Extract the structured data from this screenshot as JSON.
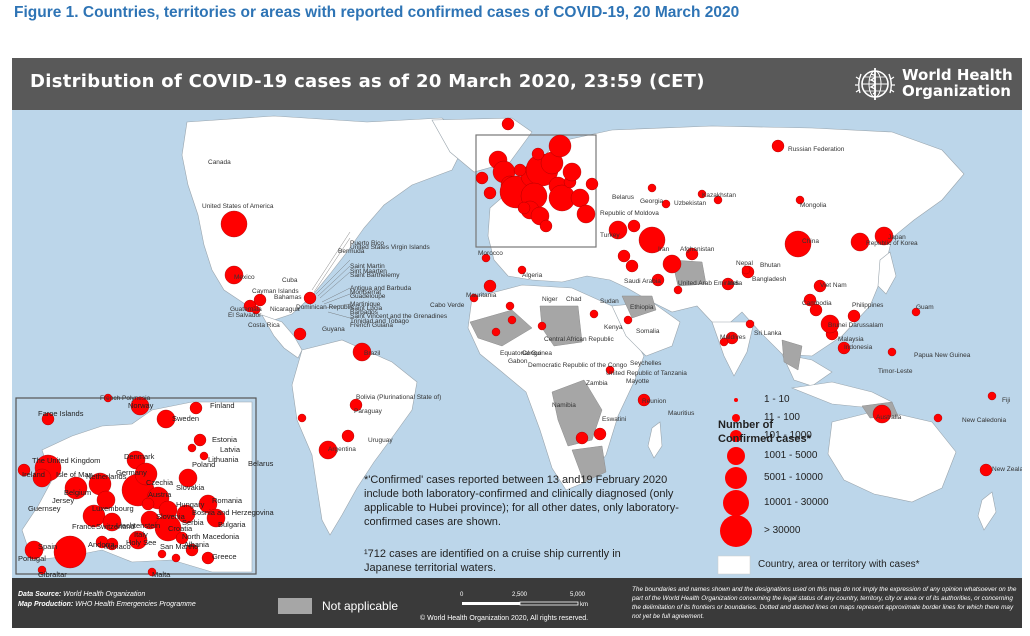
{
  "figure_caption": "Figure 1. Countries, territories or areas with reported confirmed cases of COVID-19, 20 March 2020",
  "map": {
    "title": "Distribution of COVID-19  cases as of 20 March 2020, 23:59 (CET)",
    "publisher_line1": "World Health",
    "publisher_line2": "Organization",
    "colors": {
      "ocean": "#bcd6ea",
      "affected_land": "#ffffff",
      "not_applicable": "#a6a6a6",
      "bubble": "#ff0000",
      "header": "#595959",
      "footer": "#3a3a3a"
    }
  },
  "country_labels": [
    "Canada",
    "United States of America",
    "Mexico",
    "Cuba",
    "Bahamas",
    "Bermuda",
    "Puerto Rico",
    "United States Virgin Islands",
    "Saint Martin",
    "Sint Maarten",
    "Saint Barthelemy",
    "Antigua and Barbuda",
    "Montserrat",
    "Guadeloupe",
    "Martinique",
    "Saint Lucia",
    "Barbados",
    "Saint Vincent and the Grenadines",
    "Trinidad and Tobago",
    "French Guiana",
    "Guyana",
    "Cayman Islands",
    "Dominican Republic",
    "Nicaragua",
    "Guatemala",
    "El Salvador",
    "Costa Rica",
    "Brazil",
    "Bolivia (Plurinational State of)",
    "Paraguay",
    "Uruguay",
    "Argentina",
    "French Polynesia",
    "Cabo Verde",
    "Mauritania",
    "Morocco",
    "Algeria",
    "Niger",
    "Chad",
    "Sudan",
    "Ethiopia",
    "Somalia",
    "Kenya",
    "Central African Republic",
    "Equatorial Guinea",
    "Gabon",
    "Congo",
    "Democratic Republic of the Congo",
    "United Republic of Tanzania",
    "Seychelles",
    "Mayotte",
    "Namibia",
    "Zambia",
    "Eswatini",
    "Mauritius",
    "Reunion",
    "Russian Federation",
    "Kazakhstan",
    "Mongolia",
    "Uzbekistan",
    "Georgia",
    "Republic of Moldova",
    "Belarus",
    "Turkey",
    "Afghanistan",
    "Iran",
    "Saudi Arabia",
    "United Arab Emirates",
    "Nepal",
    "Bhutan",
    "Bangladesh",
    "India",
    "Sri Lanka",
    "Maldives",
    "China",
    "Republic of Korea",
    "Japan",
    "Viet Nam",
    "Cambodia",
    "Philippines",
    "Guam",
    "Brunei Darussalam",
    "Malaysia",
    "Indonesia",
    "Timor-Leste",
    "Papua New Guinea",
    "Australia",
    "New Caledonia",
    "Fiji",
    "New Zealand"
  ],
  "inset_labels": [
    "Faroe Islands",
    "Norway",
    "Sweden",
    "Finland",
    "Estonia",
    "Latvia",
    "Lithuania",
    "Denmark",
    "The United Kingdom",
    "Ireland",
    "Isle of Man",
    "Netherlands",
    "Belgium",
    "Guernsey",
    "Jersey",
    "Luxembourg",
    "France",
    "Germany",
    "Poland",
    "Belarus",
    "Czechia",
    "Slovakia",
    "Switzerland",
    "Liechtenstein",
    "Austria",
    "Hungary",
    "Romania",
    "Slovenia",
    "Croatia",
    "Bosnia and Herzegovina",
    "Serbia",
    "Bulgaria",
    "North Macedonia",
    "Albania",
    "Greece",
    "Italy",
    "San Marino",
    "Holy See",
    "Monaco",
    "Andorra",
    "Spain",
    "Portugal",
    "Gibraltar",
    "Malta"
  ],
  "note_confirmed": "*'Confirmed' cases reported between 13 and19 February 2020 include both laboratory-confirmed and clinically diagnosed (only applicable to Hubei province); for all other dates, only laboratory-confirmed cases are shown.",
  "note_cruise": "¹712 cases are identified on a cruise ship currently in Japanese territorial waters.",
  "legend": {
    "title_line1": "Number of",
    "title_line2": "Confirmed cases*",
    "classes": [
      "1 - 10",
      "11 - 100",
      "101 - 1000",
      "1001 - 5000",
      "5001 - 10000",
      "10001 - 30000",
      "> 30000"
    ],
    "country_swatch_label": "Country, area or territory with cases*"
  },
  "footer": {
    "data_source_label": "Data Source:",
    "data_source": "World Health Organization",
    "map_production_label": "Map Production:",
    "map_production": "WHO Health Emergencies Programme",
    "not_applicable": "Not applicable",
    "scale_ticks": [
      "0",
      "2,500",
      "5,000"
    ],
    "scale_unit": "km",
    "copyright": "© World Health Organization  2020,  All rights reserved.",
    "disclaimer": "The boundaries and names shown and the designations used on this map do not imply the expression of any opinion whatsoever on the part of the World Health Organization concerning the legal status of any country, territory, city or area or of its authorities, or concerning the delimitation of its frontiers or boundaries. Dotted and dashed lines on maps represent approximate border lines for which there may not yet be full agreement."
  }
}
